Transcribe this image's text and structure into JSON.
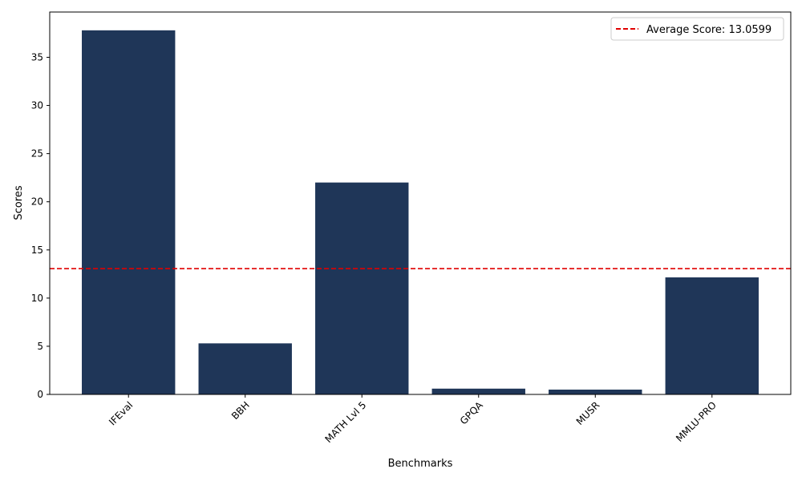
{
  "chart_data": {
    "type": "bar",
    "title": "",
    "xlabel": "Benchmarks",
    "ylabel": "Scores",
    "categories": [
      "IFEval",
      "BBH",
      "MATH Lvl 5",
      "GPQA",
      "MUSR",
      "MMLU-PRO"
    ],
    "values": [
      37.8,
      5.3,
      22.0,
      0.6,
      0.5,
      12.15
    ],
    "ylim": [
      0,
      39.7
    ],
    "yticks": [
      0,
      5,
      10,
      15,
      20,
      25,
      30,
      35
    ],
    "bar_color": "#1f3658",
    "average_line": {
      "value": 13.0599,
      "label": "Average Score: 13.0599",
      "color": "#e00000",
      "style": "dashed"
    },
    "legend_position": "top-right",
    "grid": false
  }
}
